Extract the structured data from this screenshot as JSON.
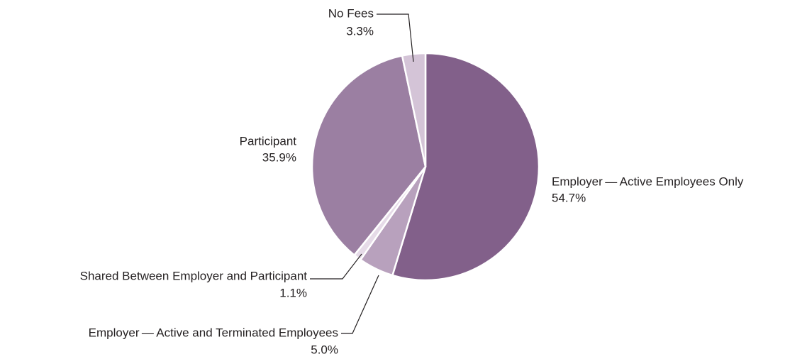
{
  "chart_data": {
    "type": "pie",
    "categories": [
      "Employer — Active Employees Only",
      "Employer — Active and Terminated Employees",
      "Shared Between Employer and Participant",
      "Participant",
      "No Fees"
    ],
    "values": [
      54.7,
      5.0,
      1.1,
      35.9,
      3.3
    ],
    "value_labels": [
      "54.7%",
      "5.0%",
      "1.1%",
      "35.9%",
      "3.3%"
    ],
    "colors": [
      "#82608a",
      "#b8a1bd",
      "#e6dbe8",
      "#9b7fa2",
      "#d4c4d7"
    ]
  }
}
